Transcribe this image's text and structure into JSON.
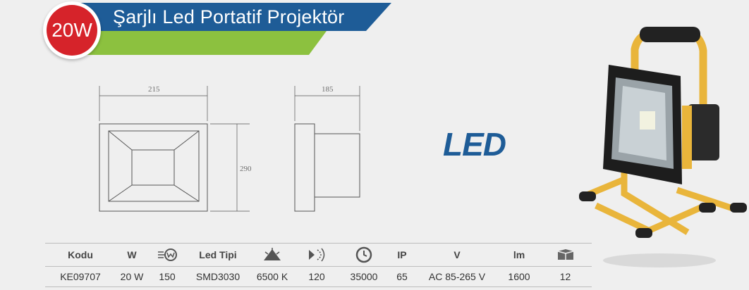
{
  "header": {
    "badge": "20W",
    "title": "Şarjlı Led Portatif Projektör"
  },
  "drawing": {
    "width_label": "215",
    "depth_label": "185",
    "height_label": "290"
  },
  "logo": {
    "text": "LED"
  },
  "table": {
    "headers": [
      "Kodu",
      "W",
      "",
      "Led Tipi",
      "",
      "",
      "",
      "IP",
      "V",
      "lm",
      ""
    ],
    "header_icons": [
      "",
      "",
      "equivalent-watt-icon",
      "",
      "color-temperature-icon",
      "beam-angle-icon",
      "lifetime-clock-icon",
      "",
      "",
      "",
      "package-box-icon"
    ],
    "row": [
      "KE09707",
      "20 W",
      "150",
      "SMD3030",
      "6500 K",
      "120",
      "35000",
      "65",
      "AC 85-265 V",
      "1600",
      "12"
    ]
  },
  "colors": {
    "banner_blue": "#1e5c97",
    "banner_green": "#8cc13f",
    "badge_red": "#d6232a",
    "logo_blue": "#1e5c97",
    "product_yellow": "#e9b53b"
  }
}
